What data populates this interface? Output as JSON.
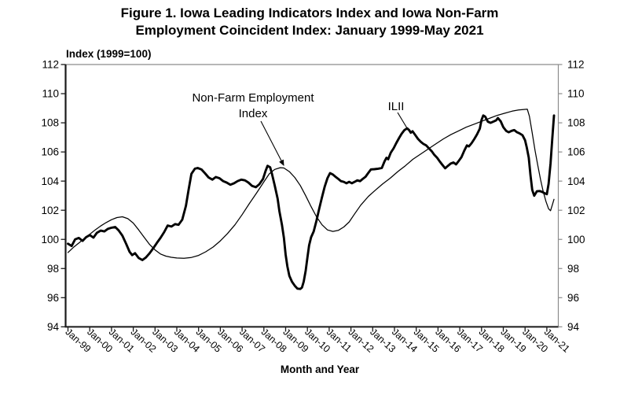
{
  "figure": {
    "title_line1": "Figure 1. Iowa Leading Indicators Index and Iowa Non-Farm",
    "title_line2": "Employment Coincident Index: January 1999-May 2021"
  },
  "axes": {
    "y_title": "Index (1999=100)",
    "x_title": "Month and Year",
    "y_ticks": [
      112,
      110,
      108,
      106,
      104,
      102,
      100,
      98,
      96,
      94
    ],
    "x_ticks": [
      "Jan-99",
      "Jan-00",
      "Jan-01",
      "Jan-02",
      "Jan-03",
      "Jan-04",
      "Jan-05",
      "Jan-06",
      "Jan-07",
      "Jan-08",
      "Jan-09",
      "Jan-10",
      "Jan-11",
      "Jan-12",
      "Jan-13",
      "Jan-14",
      "Jan-15",
      "Jan-16",
      "Jan-17",
      "Jan-18",
      "Jan-19",
      "Jan-20",
      "Jan-21"
    ]
  },
  "annotations": {
    "nonfarm_line1": "Non-Farm Employment",
    "nonfarm_line2": "Index",
    "ilii": "ILII"
  },
  "colors": {
    "line": "#000000",
    "frame_dark": "#1a1a1a",
    "frame_light": "#8c8c8c",
    "background": "#ffffff"
  },
  "chart_data": {
    "type": "line",
    "title": "Figure 1. Iowa Leading Indicators Index and Iowa Non-Farm Employment Coincident Index: January 1999-May 2021",
    "xlabel": "Month and Year",
    "ylabel": "Index (1999=100)",
    "ylim": [
      94,
      112
    ],
    "x_unit": "decimal_year",
    "xlim": [
      1999.0,
      2021.6
    ],
    "grid": false,
    "legend": "inline-annotations",
    "series": [
      {
        "name": "ILII (Iowa Leading Indicators Index)",
        "style": "thick",
        "stroke_width": 2.9,
        "points": [
          [
            1999.0,
            99.7
          ],
          [
            1999.17,
            99.55
          ],
          [
            1999.33,
            100.0
          ],
          [
            1999.5,
            100.1
          ],
          [
            1999.67,
            99.9
          ],
          [
            1999.83,
            100.15
          ],
          [
            2000.0,
            100.3
          ],
          [
            2000.17,
            100.12
          ],
          [
            2000.33,
            100.45
          ],
          [
            2000.5,
            100.6
          ],
          [
            2000.67,
            100.55
          ],
          [
            2000.83,
            100.72
          ],
          [
            2001.0,
            100.8
          ],
          [
            2001.17,
            100.85
          ],
          [
            2001.33,
            100.62
          ],
          [
            2001.5,
            100.25
          ],
          [
            2001.67,
            99.7
          ],
          [
            2001.83,
            99.15
          ],
          [
            2001.95,
            98.92
          ],
          [
            2002.08,
            99.05
          ],
          [
            2002.25,
            98.72
          ],
          [
            2002.42,
            98.58
          ],
          [
            2002.58,
            98.76
          ],
          [
            2002.75,
            99.05
          ],
          [
            2002.92,
            99.4
          ],
          [
            2003.08,
            99.75
          ],
          [
            2003.25,
            100.1
          ],
          [
            2003.42,
            100.5
          ],
          [
            2003.58,
            100.95
          ],
          [
            2003.75,
            100.88
          ],
          [
            2003.92,
            101.05
          ],
          [
            2004.08,
            101.0
          ],
          [
            2004.25,
            101.35
          ],
          [
            2004.42,
            102.3
          ],
          [
            2004.54,
            103.4
          ],
          [
            2004.67,
            104.5
          ],
          [
            2004.83,
            104.85
          ],
          [
            2004.96,
            104.9
          ],
          [
            2005.13,
            104.8
          ],
          [
            2005.29,
            104.55
          ],
          [
            2005.46,
            104.25
          ],
          [
            2005.63,
            104.1
          ],
          [
            2005.79,
            104.28
          ],
          [
            2005.96,
            104.2
          ],
          [
            2006.13,
            104.0
          ],
          [
            2006.29,
            103.9
          ],
          [
            2006.46,
            103.75
          ],
          [
            2006.63,
            103.85
          ],
          [
            2006.79,
            104.0
          ],
          [
            2006.96,
            104.1
          ],
          [
            2007.13,
            104.05
          ],
          [
            2007.29,
            103.9
          ],
          [
            2007.46,
            103.67
          ],
          [
            2007.63,
            103.58
          ],
          [
            2007.79,
            103.78
          ],
          [
            2007.96,
            104.15
          ],
          [
            2008.08,
            104.7
          ],
          [
            2008.17,
            105.05
          ],
          [
            2008.29,
            104.95
          ],
          [
            2008.38,
            104.45
          ],
          [
            2008.5,
            103.7
          ],
          [
            2008.63,
            102.8
          ],
          [
            2008.71,
            101.95
          ],
          [
            2008.83,
            101.0
          ],
          [
            2008.92,
            100.1
          ],
          [
            2009.0,
            98.95
          ],
          [
            2009.08,
            98.15
          ],
          [
            2009.17,
            97.5
          ],
          [
            2009.29,
            97.1
          ],
          [
            2009.42,
            96.82
          ],
          [
            2009.54,
            96.62
          ],
          [
            2009.67,
            96.6
          ],
          [
            2009.75,
            96.7
          ],
          [
            2009.83,
            97.1
          ],
          [
            2009.92,
            97.85
          ],
          [
            2010.0,
            98.75
          ],
          [
            2010.08,
            99.6
          ],
          [
            2010.17,
            100.15
          ],
          [
            2010.29,
            100.55
          ],
          [
            2010.42,
            101.3
          ],
          [
            2010.54,
            102.1
          ],
          [
            2010.67,
            102.9
          ],
          [
            2010.79,
            103.6
          ],
          [
            2010.92,
            104.2
          ],
          [
            2011.04,
            104.55
          ],
          [
            2011.17,
            104.45
          ],
          [
            2011.29,
            104.3
          ],
          [
            2011.42,
            104.15
          ],
          [
            2011.54,
            104.0
          ],
          [
            2011.67,
            103.95
          ],
          [
            2011.79,
            103.85
          ],
          [
            2011.92,
            103.95
          ],
          [
            2012.04,
            103.85
          ],
          [
            2012.17,
            103.95
          ],
          [
            2012.29,
            104.05
          ],
          [
            2012.42,
            104.0
          ],
          [
            2012.54,
            104.15
          ],
          [
            2012.67,
            104.3
          ],
          [
            2012.79,
            104.55
          ],
          [
            2012.92,
            104.8
          ],
          [
            2013.08,
            104.82
          ],
          [
            2013.25,
            104.85
          ],
          [
            2013.42,
            104.9
          ],
          [
            2013.54,
            105.35
          ],
          [
            2013.63,
            105.6
          ],
          [
            2013.71,
            105.5
          ],
          [
            2013.83,
            105.95
          ],
          [
            2013.96,
            106.25
          ],
          [
            2014.08,
            106.6
          ],
          [
            2014.21,
            106.95
          ],
          [
            2014.33,
            107.25
          ],
          [
            2014.46,
            107.5
          ],
          [
            2014.58,
            107.62
          ],
          [
            2014.67,
            107.5
          ],
          [
            2014.75,
            107.32
          ],
          [
            2014.83,
            107.42
          ],
          [
            2014.96,
            107.15
          ],
          [
            2015.08,
            106.9
          ],
          [
            2015.21,
            106.7
          ],
          [
            2015.33,
            106.55
          ],
          [
            2015.46,
            106.45
          ],
          [
            2015.58,
            106.25
          ],
          [
            2015.71,
            106.05
          ],
          [
            2015.83,
            105.8
          ],
          [
            2015.96,
            105.6
          ],
          [
            2016.08,
            105.35
          ],
          [
            2016.21,
            105.1
          ],
          [
            2016.33,
            104.88
          ],
          [
            2016.46,
            105.05
          ],
          [
            2016.58,
            105.2
          ],
          [
            2016.71,
            105.28
          ],
          [
            2016.83,
            105.15
          ],
          [
            2016.96,
            105.4
          ],
          [
            2017.08,
            105.65
          ],
          [
            2017.21,
            106.1
          ],
          [
            2017.33,
            106.45
          ],
          [
            2017.42,
            106.38
          ],
          [
            2017.54,
            106.6
          ],
          [
            2017.67,
            106.9
          ],
          [
            2017.79,
            107.2
          ],
          [
            2017.92,
            107.6
          ],
          [
            2018.0,
            108.2
          ],
          [
            2018.08,
            108.5
          ],
          [
            2018.17,
            108.42
          ],
          [
            2018.29,
            108.08
          ],
          [
            2018.42,
            108.0
          ],
          [
            2018.54,
            108.08
          ],
          [
            2018.67,
            108.17
          ],
          [
            2018.75,
            108.33
          ],
          [
            2018.88,
            108.1
          ],
          [
            2019.0,
            107.7
          ],
          [
            2019.13,
            107.45
          ],
          [
            2019.25,
            107.35
          ],
          [
            2019.38,
            107.45
          ],
          [
            2019.5,
            107.5
          ],
          [
            2019.63,
            107.35
          ],
          [
            2019.75,
            107.27
          ],
          [
            2019.88,
            107.15
          ],
          [
            2020.0,
            106.8
          ],
          [
            2020.08,
            106.3
          ],
          [
            2020.17,
            105.6
          ],
          [
            2020.25,
            104.4
          ],
          [
            2020.33,
            103.4
          ],
          [
            2020.42,
            103.0
          ],
          [
            2020.54,
            103.3
          ],
          [
            2020.67,
            103.32
          ],
          [
            2020.79,
            103.25
          ],
          [
            2020.92,
            103.15
          ],
          [
            2021.0,
            103.1
          ],
          [
            2021.08,
            103.8
          ],
          [
            2021.17,
            105.2
          ],
          [
            2021.25,
            106.9
          ],
          [
            2021.33,
            108.5
          ]
        ]
      },
      {
        "name": "Non-Farm Employment Coincident Index",
        "style": "thin",
        "stroke_width": 1.25,
        "points": [
          [
            1999.0,
            99.1
          ],
          [
            1999.25,
            99.45
          ],
          [
            1999.5,
            99.75
          ],
          [
            1999.75,
            100.05
          ],
          [
            2000.0,
            100.35
          ],
          [
            2000.25,
            100.65
          ],
          [
            2000.5,
            100.92
          ],
          [
            2000.75,
            101.15
          ],
          [
            2001.0,
            101.35
          ],
          [
            2001.25,
            101.5
          ],
          [
            2001.5,
            101.55
          ],
          [
            2001.75,
            101.42
          ],
          [
            2002.0,
            101.12
          ],
          [
            2002.25,
            100.65
          ],
          [
            2002.5,
            100.15
          ],
          [
            2002.75,
            99.65
          ],
          [
            2003.0,
            99.28
          ],
          [
            2003.25,
            99.0
          ],
          [
            2003.5,
            98.85
          ],
          [
            2003.75,
            98.77
          ],
          [
            2004.0,
            98.72
          ],
          [
            2004.33,
            98.7
          ],
          [
            2004.67,
            98.76
          ],
          [
            2005.0,
            98.9
          ],
          [
            2005.33,
            99.15
          ],
          [
            2005.67,
            99.48
          ],
          [
            2006.0,
            99.9
          ],
          [
            2006.33,
            100.4
          ],
          [
            2006.67,
            101.0
          ],
          [
            2007.0,
            101.7
          ],
          [
            2007.33,
            102.45
          ],
          [
            2007.67,
            103.2
          ],
          [
            2008.0,
            103.95
          ],
          [
            2008.25,
            104.5
          ],
          [
            2008.5,
            104.8
          ],
          [
            2008.75,
            104.92
          ],
          [
            2008.92,
            104.9
          ],
          [
            2009.17,
            104.65
          ],
          [
            2009.42,
            104.25
          ],
          [
            2009.67,
            103.7
          ],
          [
            2009.92,
            103.0
          ],
          [
            2010.17,
            102.25
          ],
          [
            2010.42,
            101.55
          ],
          [
            2010.67,
            101.0
          ],
          [
            2010.92,
            100.65
          ],
          [
            2011.17,
            100.55
          ],
          [
            2011.42,
            100.62
          ],
          [
            2011.67,
            100.85
          ],
          [
            2011.92,
            101.2
          ],
          [
            2012.17,
            101.75
          ],
          [
            2012.45,
            102.35
          ],
          [
            2012.8,
            102.95
          ],
          [
            2013.1,
            103.35
          ],
          [
            2013.45,
            103.8
          ],
          [
            2013.8,
            104.2
          ],
          [
            2014.15,
            104.65
          ],
          [
            2014.5,
            105.05
          ],
          [
            2014.85,
            105.5
          ],
          [
            2015.2,
            105.85
          ],
          [
            2015.55,
            106.2
          ],
          [
            2015.9,
            106.55
          ],
          [
            2016.25,
            106.9
          ],
          [
            2016.6,
            107.2
          ],
          [
            2016.95,
            107.45
          ],
          [
            2017.3,
            107.7
          ],
          [
            2017.65,
            107.9
          ],
          [
            2018.0,
            108.1
          ],
          [
            2018.35,
            108.3
          ],
          [
            2018.7,
            108.5
          ],
          [
            2019.05,
            108.65
          ],
          [
            2019.4,
            108.8
          ],
          [
            2019.7,
            108.88
          ],
          [
            2020.0,
            108.92
          ],
          [
            2020.1,
            108.94
          ],
          [
            2020.2,
            108.45
          ],
          [
            2020.33,
            107.3
          ],
          [
            2020.46,
            106.1
          ],
          [
            2020.58,
            105.1
          ],
          [
            2020.71,
            104.1
          ],
          [
            2020.83,
            103.3
          ],
          [
            2020.96,
            102.6
          ],
          [
            2021.08,
            102.1
          ],
          [
            2021.17,
            101.97
          ],
          [
            2021.25,
            102.35
          ],
          [
            2021.33,
            102.75
          ]
        ]
      }
    ]
  }
}
